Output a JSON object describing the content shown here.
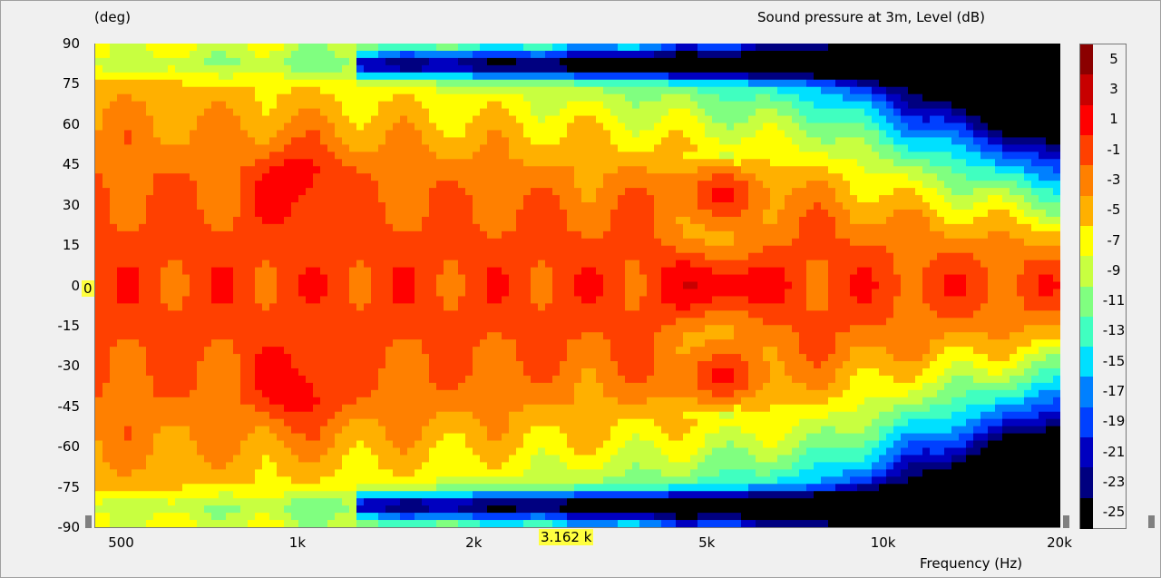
{
  "header": {
    "y_unit": "(deg)",
    "title": "Sound pressure at 3m, Level  (dB)"
  },
  "cursor": {
    "angle_value": "0",
    "freq_value": "3.162 k"
  },
  "colors": {
    "cursor_bg": "#ffff40"
  },
  "chart_data": {
    "type": "heatmap",
    "title": "Sound pressure at 3m, Level  (dB)",
    "ylabel": "(deg)",
    "xlabel": "Frequency  (Hz)",
    "x_scale": "log",
    "xlim": [
      450,
      20000
    ],
    "ylim": [
      -90,
      90
    ],
    "x_ticks": [
      {
        "value": 500,
        "label": "500"
      },
      {
        "value": 1000,
        "label": "1k"
      },
      {
        "value": 2000,
        "label": "2k"
      },
      {
        "value": 5000,
        "label": "5k"
      },
      {
        "value": 10000,
        "label": "10k"
      },
      {
        "value": 20000,
        "label": "20k"
      }
    ],
    "y_ticks": [
      90,
      75,
      60,
      45,
      30,
      15,
      0,
      -15,
      -30,
      -45,
      -60,
      -75,
      -90
    ],
    "colorbar": {
      "unit": "dB",
      "levels": [
        5,
        3,
        1,
        -1,
        -3,
        -5,
        -7,
        -9,
        -11,
        -13,
        -15,
        -17,
        -19,
        -21,
        -23,
        -25
      ],
      "colors": [
        "#8b0000",
        "#c80000",
        "#ff0000",
        "#ff4000",
        "#ff8000",
        "#ffb000",
        "#ffff00",
        "#c8ff40",
        "#80ff80",
        "#40ffc0",
        "#00e0ff",
        "#0080ff",
        "#0040ff",
        "#0000c0",
        "#000080",
        "#000000"
      ]
    },
    "grid": false,
    "legend": "right"
  }
}
